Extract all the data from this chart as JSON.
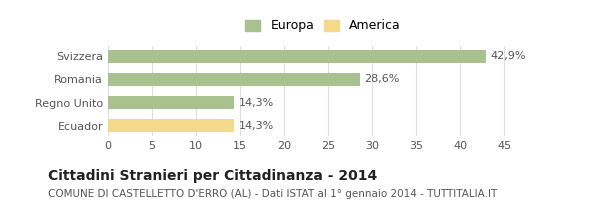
{
  "categories": [
    "Svizzera",
    "Romania",
    "Regno Unito",
    "Ecuador"
  ],
  "values": [
    42.9,
    28.6,
    14.3,
    14.3
  ],
  "labels": [
    "42,9%",
    "28,6%",
    "14,3%",
    "14,3%"
  ],
  "bar_colors": [
    "#a8c18f",
    "#a8c18f",
    "#a8c18f",
    "#f5d98b"
  ],
  "legend_labels": [
    "Europa",
    "America"
  ],
  "legend_colors": [
    "#a8c18f",
    "#f5d98b"
  ],
  "xlim": [
    0,
    47
  ],
  "xticks": [
    0,
    5,
    10,
    15,
    20,
    25,
    30,
    35,
    40,
    45
  ],
  "title": "Cittadini Stranieri per Cittadinanza - 2014",
  "subtitle": "COMUNE DI CASTELLETTO D'ERRO (AL) - Dati ISTAT al 1° gennaio 2014 - TUTTITALIA.IT",
  "bg_color": "#ffffff",
  "grid_color": "#dddddd",
  "title_fontsize": 10,
  "subtitle_fontsize": 7.5,
  "label_fontsize": 8,
  "tick_fontsize": 8,
  "legend_fontsize": 9
}
